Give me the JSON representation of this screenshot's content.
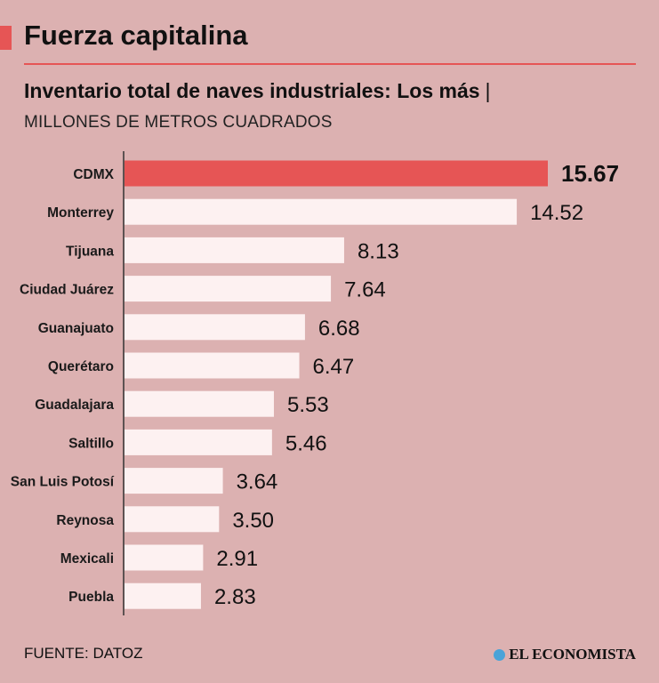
{
  "title": "Fuerza capitalina",
  "subtitle": "Inventario total de naves industriales: Los más",
  "subtitle_separator": "|",
  "units": "MILLONES DE METROS CUADRADOS",
  "source": "FUENTE: DATOZ",
  "brand": "EL ECONOMISTA",
  "colors": {
    "background": "#dcb1b1",
    "accent": "#e65555",
    "bar": "#fdf1f1",
    "highlight_bar": "#e65555",
    "axis": "#333333",
    "brand_icon": "#4aa3d8"
  },
  "chart_data": {
    "type": "bar",
    "orientation": "horizontal",
    "title": "Inventario total de naves industriales: Los más",
    "ylabel": "MILLONES DE METROS CUADRADOS",
    "categories": [
      "CDMX",
      "Monterrey",
      "Tijuana",
      "Ciudad Juárez",
      "Guanajuato",
      "Querétaro",
      "Guadalajara",
      "Saltillo",
      "San Luis Potosí",
      "Reynosa",
      "Mexicali",
      "Puebla"
    ],
    "values": [
      15.67,
      14.52,
      8.13,
      7.64,
      6.68,
      6.47,
      5.53,
      5.46,
      3.64,
      3.5,
      2.91,
      2.83
    ],
    "value_labels": [
      "15.67",
      "14.52",
      "8.13",
      "7.64",
      "6.68",
      "6.47",
      "5.53",
      "5.46",
      "3.64",
      "3.50",
      "2.91",
      "2.83"
    ],
    "highlight": "CDMX",
    "xlim": [
      0,
      15.67
    ],
    "grid": false,
    "legend": "none"
  }
}
